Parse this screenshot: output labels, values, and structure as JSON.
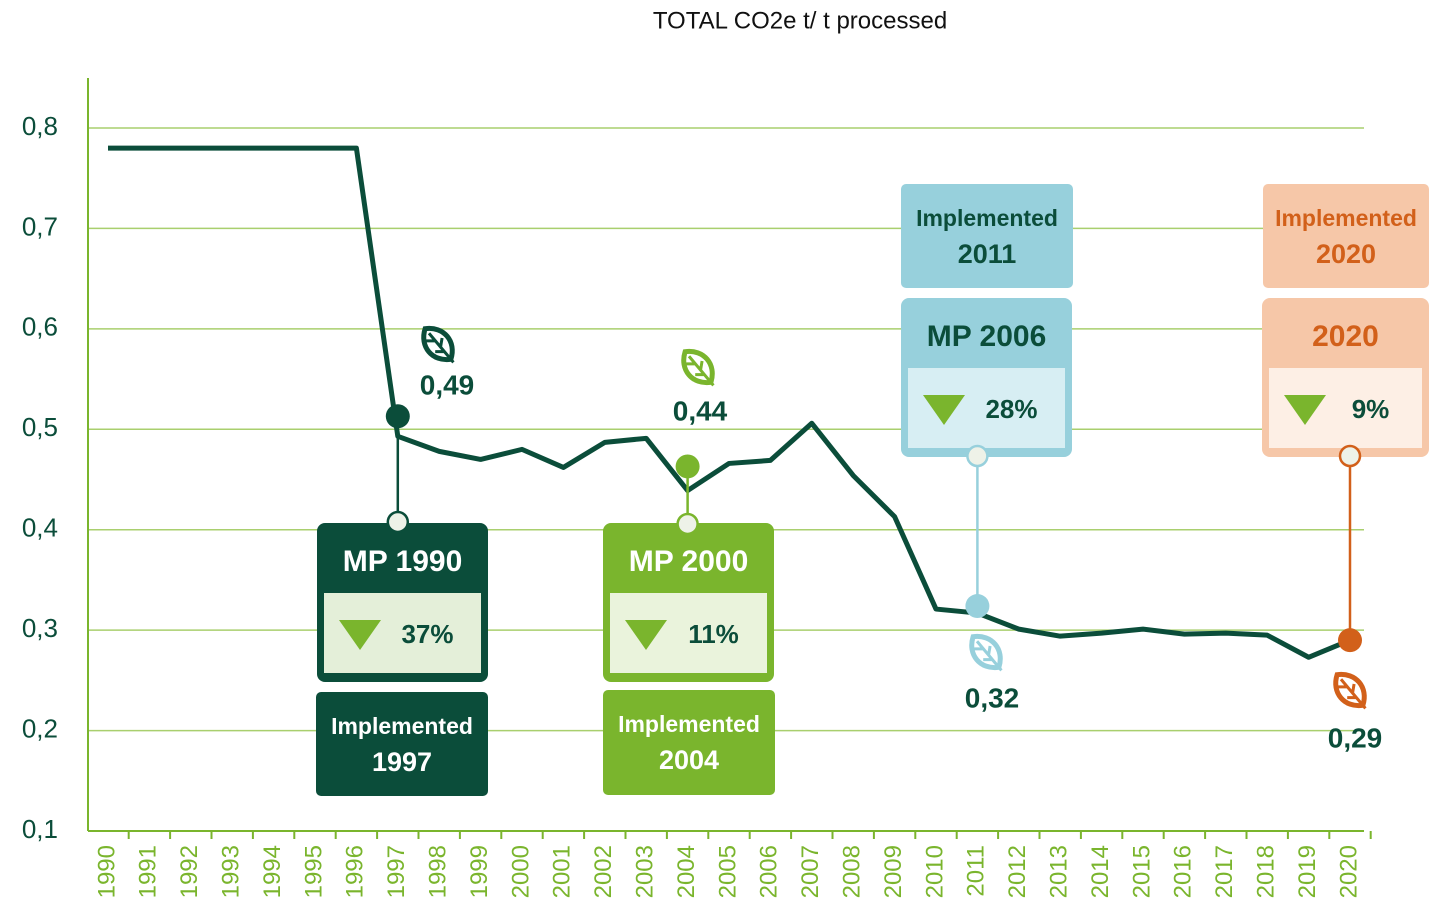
{
  "chart_data": {
    "type": "line",
    "title": "TOTAL CO2e t/ t processed",
    "categories": [
      "1990",
      "1991",
      "1992",
      "1993",
      "1994",
      "1995",
      "1996",
      "1997",
      "1998",
      "1999",
      "2000",
      "2001",
      "2002",
      "2003",
      "2004",
      "2005",
      "2006",
      "2007",
      "2008",
      "2009",
      "2010",
      "2011",
      "2012",
      "2013",
      "2014",
      "2015",
      "2016",
      "2017",
      "2018",
      "2019",
      "2020"
    ],
    "series": [
      {
        "color": "#0b4d3a",
        "values": [
          0.78,
          0.78,
          0.78,
          0.78,
          0.78,
          0.78,
          0.78,
          0.493,
          0.478,
          0.47,
          0.48,
          0.462,
          0.487,
          0.491,
          0.439,
          0.466,
          0.469,
          0.506,
          0.454,
          0.413,
          0.321,
          0.317,
          0.301,
          0.294,
          0.297,
          0.301,
          0.296,
          0.297,
          0.295,
          0.273,
          0.29
        ]
      }
    ],
    "ylim": [
      0.1,
      0.8
    ],
    "yticks": [
      {
        "value": 0.1,
        "label": "0,1"
      },
      {
        "value": 0.2,
        "label": "0,2"
      },
      {
        "value": 0.3,
        "label": "0,3"
      },
      {
        "value": 0.4,
        "label": "0,4"
      },
      {
        "value": 0.5,
        "label": "0,5"
      },
      {
        "value": 0.6,
        "label": "0,6"
      },
      {
        "value": 0.7,
        "label": "0,7"
      },
      {
        "value": 0.8,
        "label": "0,8"
      }
    ],
    "grid": true,
    "annotations": [
      {
        "x": "1997",
        "dot_y": 0.513,
        "color": "#0b4d3a",
        "label": "0,49",
        "plan": "MP 1990",
        "reduction": "37%",
        "implemented": [
          "Implemented",
          "1997"
        ]
      },
      {
        "x": "2004",
        "dot_y": 0.463,
        "color": "#7ab52d",
        "label": "0,44",
        "plan": "MP 2000",
        "reduction": "11%",
        "implemented": [
          "Implemented",
          "2004"
        ]
      },
      {
        "x": "2011",
        "dot_y": 0.324,
        "color": "#97d0dc",
        "label": "0,32",
        "plan": "MP 2006",
        "reduction": "28%",
        "implemented": [
          "Implemented",
          "2011"
        ]
      },
      {
        "x": "2020",
        "dot_y": 0.29,
        "color": "#d2601a",
        "label": "0,29",
        "plan": "2020",
        "reduction": "9%",
        "implemented": [
          "Implemented",
          "2020"
        ]
      }
    ]
  }
}
